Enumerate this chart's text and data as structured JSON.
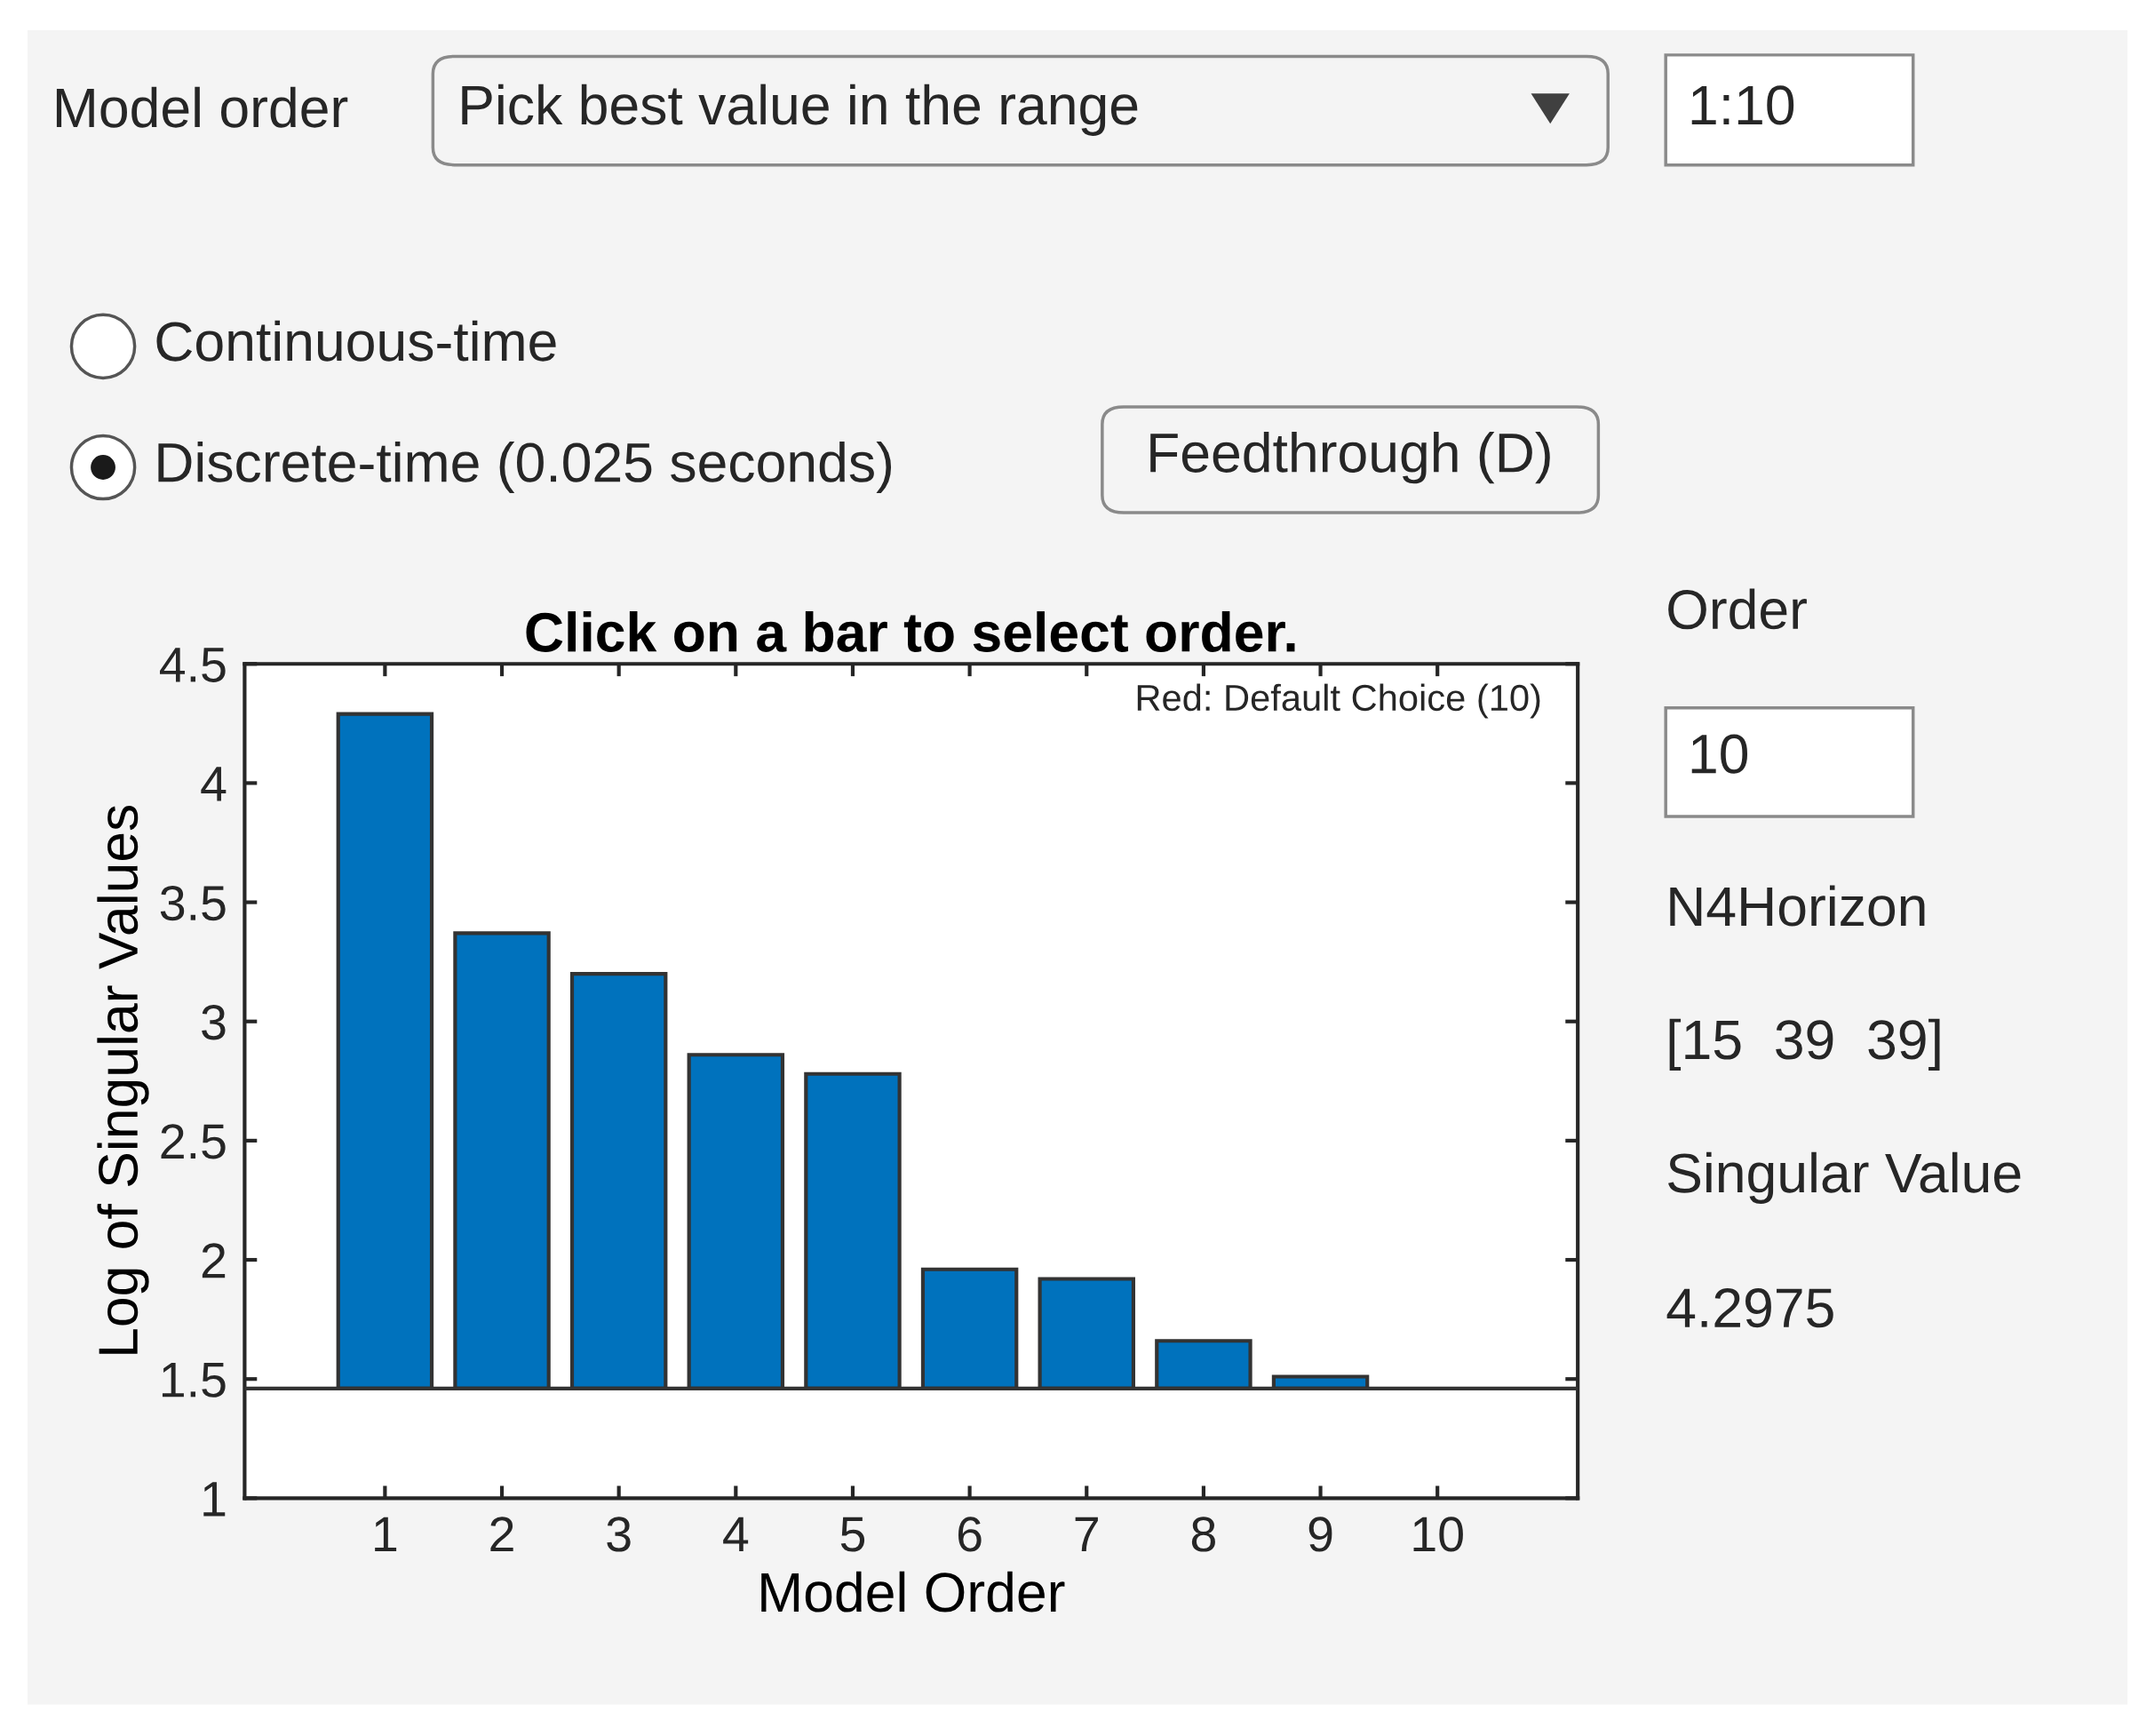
{
  "chart_data": {
    "type": "bar",
    "title": "Click on a bar to select order.",
    "xlabel": "Model Order",
    "ylabel": "Log of Singular Values",
    "categories": [
      "1",
      "2",
      "3",
      "4",
      "5",
      "6",
      "7",
      "8",
      "9",
      "10"
    ],
    "base": [
      1.46,
      1.46,
      1.46,
      1.46,
      1.46,
      1.46,
      1.46,
      1.46,
      1.46,
      null
    ],
    "values": [
      2.83,
      1.91,
      1.74,
      1.4,
      1.32,
      0.5,
      0.46,
      0.2,
      0.05,
      null
    ],
    "colors": [
      "#0072bd",
      "#0072bd",
      "#0072bd",
      "#0072bd",
      "#0072bd",
      "#0072bd",
      "#0072bd",
      "#0072bd",
      "#0072bd",
      "#d95319"
    ],
    "ylim": [
      1,
      4.5
    ],
    "yticks": [
      1,
      1.5,
      2,
      2.5,
      3,
      3.5,
      4,
      4.5
    ],
    "ref_lines": [
      {
        "axis": "y",
        "value": 1.46,
        "color": "#333333"
      }
    ],
    "grid": false,
    "legend": false,
    "annotations": [
      "Model order",
      "Pick best value in the range",
      "1:10",
      "Continuous-time",
      "Discrete-time (0.025 seconds)",
      "Feedthrough (D)",
      "Red: Default Choice (10)",
      "Order",
      "10",
      "N4Horizon",
      "[15  39  39]",
      "Singular Value",
      "4.2975"
    ]
  }
}
